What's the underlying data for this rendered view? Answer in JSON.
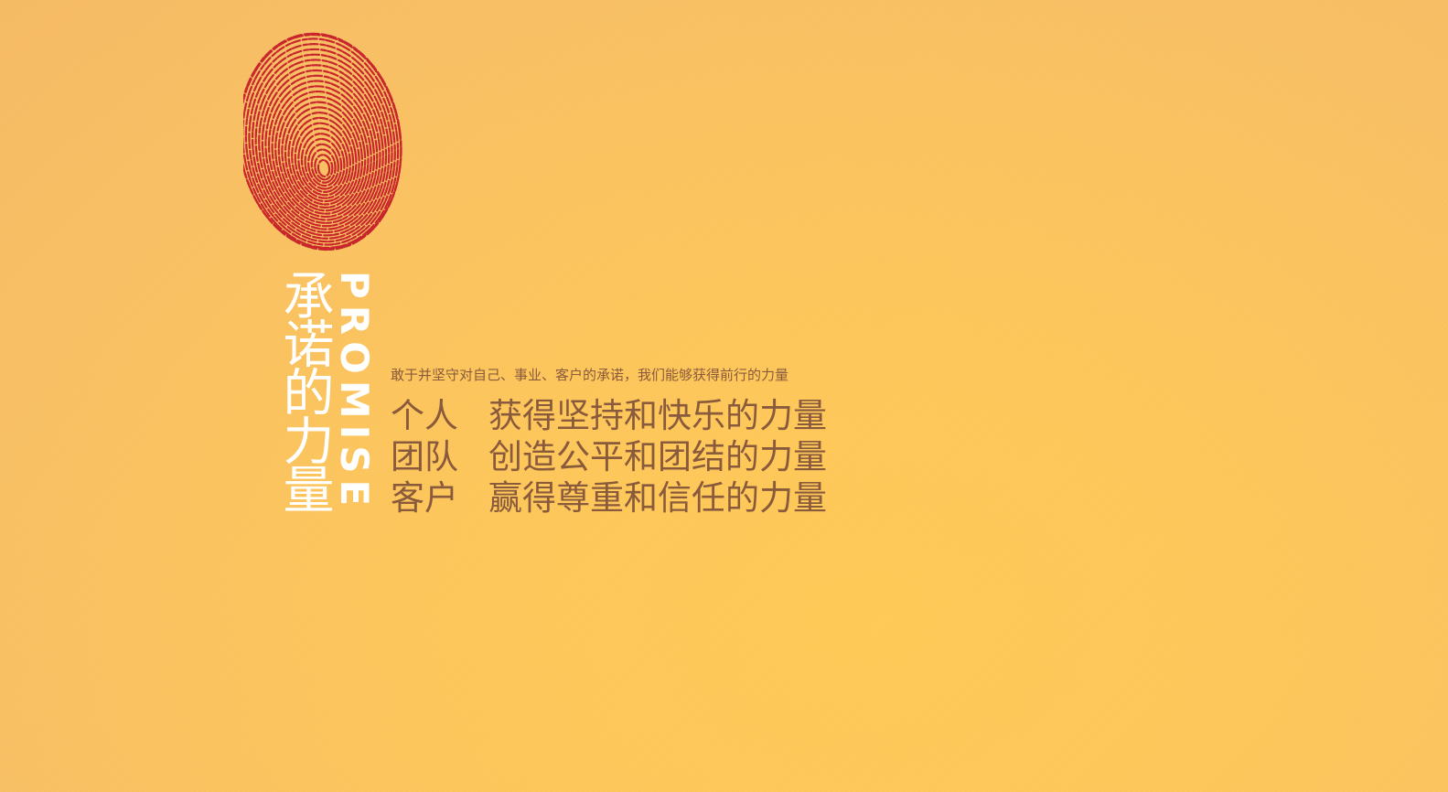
{
  "colors": {
    "background": "#fcc55a",
    "fingerprint": "#c8262c",
    "title": "#ffffff",
    "text": "#8a5a3c"
  },
  "logo": {
    "icon": "fingerprint-icon"
  },
  "title": {
    "cn": "承诺的力量",
    "en": "PROMISE"
  },
  "subtitle": "敢于并坚守对自己、事业、客户的承诺，我们能够获得前行的力量",
  "values": [
    {
      "who": "个人",
      "what": "获得坚持和快乐的力量"
    },
    {
      "who": "团队",
      "what": "创造公平和团结的力量"
    },
    {
      "who": "客户",
      "what": "赢得尊重和信任的力量"
    }
  ]
}
